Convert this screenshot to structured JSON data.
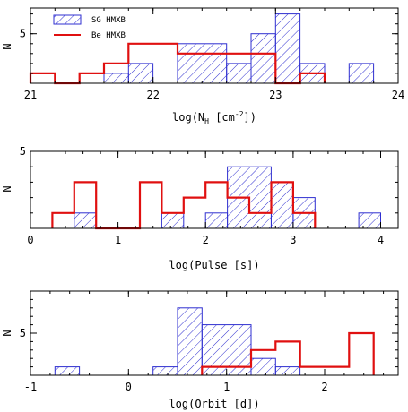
{
  "colors": {
    "sg": "#2f2fd0",
    "be": "#e01010",
    "axis": "#000000"
  },
  "chart_data": [
    {
      "type": "histogram",
      "xlabel": "log(N",
      "xlabel_sub": "H",
      "xlabel_unit_open": " [cm",
      "xlabel_sup": "-2",
      "xlabel_close": "])",
      "ylabel": "N",
      "xlim": [
        21,
        24
      ],
      "ylim": [
        0,
        7.6
      ],
      "xticks": [
        "21",
        "22",
        "23",
        "24"
      ],
      "yticks": [
        "5"
      ],
      "bin_width": 0.2,
      "legend": {
        "position": "top-left",
        "entries": [
          "SG HMXB",
          "Be HMXB"
        ]
      },
      "series": [
        {
          "name": "SG HMXB",
          "style": "hatched",
          "bins": [
            {
              "x0": 21.6,
              "x1": 21.8,
              "y": 1
            },
            {
              "x0": 21.8,
              "x1": 22.0,
              "y": 2
            },
            {
              "x0": 22.2,
              "x1": 22.6,
              "y": 4
            },
            {
              "x0": 22.6,
              "x1": 22.8,
              "y": 2
            },
            {
              "x0": 22.8,
              "x1": 23.0,
              "y": 5
            },
            {
              "x0": 23.0,
              "x1": 23.2,
              "y": 7
            },
            {
              "x0": 23.2,
              "x1": 23.4,
              "y": 2
            },
            {
              "x0": 23.6,
              "x1": 23.8,
              "y": 2
            }
          ]
        },
        {
          "name": "Be HMXB",
          "style": "step",
          "edges": [
            21.0,
            21.2,
            21.4,
            21.6,
            21.8,
            22.0,
            22.2,
            22.4,
            22.6,
            22.8,
            23.0,
            23.2,
            23.4
          ],
          "counts": [
            1,
            0,
            1,
            2,
            4,
            4,
            3,
            3,
            3,
            3,
            0,
            1
          ]
        }
      ]
    },
    {
      "type": "histogram",
      "xlabel": "log(Pulse [s])",
      "ylabel": "N",
      "xlim": [
        0,
        4.2
      ],
      "ylim": [
        0,
        5
      ],
      "xticks": [
        "0",
        "1",
        "2",
        "3",
        "4"
      ],
      "yticks": [
        "5"
      ],
      "bin_width": 0.25,
      "series": [
        {
          "name": "SG HMXB",
          "style": "hatched",
          "bins": [
            {
              "x0": 0.5,
              "x1": 0.75,
              "y": 1
            },
            {
              "x0": 1.5,
              "x1": 1.75,
              "y": 1
            },
            {
              "x0": 2.0,
              "x1": 2.25,
              "y": 1
            },
            {
              "x0": 2.25,
              "x1": 2.75,
              "y": 4
            },
            {
              "x0": 2.75,
              "x1": 3.0,
              "y": 3
            },
            {
              "x0": 3.0,
              "x1": 3.25,
              "y": 2
            },
            {
              "x0": 3.75,
              "x1": 4.0,
              "y": 1
            }
          ]
        },
        {
          "name": "Be HMXB",
          "style": "step",
          "edges": [
            0.25,
            0.5,
            0.75,
            1.0,
            1.25,
            1.5,
            1.75,
            2.0,
            2.25,
            2.5,
            2.75,
            3.0,
            3.25
          ],
          "counts": [
            1,
            3,
            0,
            0,
            3,
            1,
            2,
            3,
            2,
            1,
            3,
            1
          ]
        }
      ]
    },
    {
      "type": "histogram",
      "xlabel": "log(Orbit [d])",
      "ylabel": "N",
      "xlim": [
        -1,
        2.75
      ],
      "ylim": [
        0,
        10
      ],
      "xticks": [
        "-1",
        "0",
        "1",
        "2"
      ],
      "yticks": [
        "5"
      ],
      "bin_width": 0.25,
      "series": [
        {
          "name": "SG HMXB",
          "style": "hatched",
          "bins": [
            {
              "x0": -0.75,
              "x1": -0.5,
              "y": 1
            },
            {
              "x0": 0.25,
              "x1": 0.5,
              "y": 1
            },
            {
              "x0": 0.5,
              "x1": 0.75,
              "y": 8
            },
            {
              "x0": 0.75,
              "x1": 1.25,
              "y": 6
            },
            {
              "x0": 1.25,
              "x1": 1.5,
              "y": 2
            },
            {
              "x0": 1.5,
              "x1": 1.75,
              "y": 1
            }
          ]
        },
        {
          "name": "Be HMXB",
          "style": "step",
          "edges": [
            0.75,
            1.0,
            1.25,
            1.5,
            1.75,
            2.0,
            2.25,
            2.5
          ],
          "counts": [
            1,
            1,
            3,
            4,
            1,
            1,
            5
          ]
        }
      ]
    }
  ]
}
